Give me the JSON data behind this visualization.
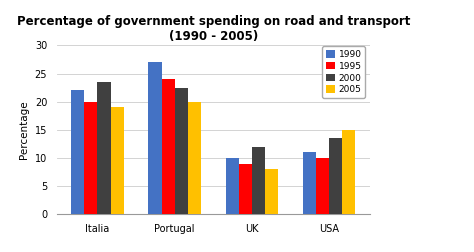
{
  "title": "Percentage of government spending on road and transport\n(1990 - 2005)",
  "ylabel": "Percentage",
  "categories": [
    "Italia",
    "Portugal",
    "UK",
    "USA"
  ],
  "years": [
    "1990",
    "1995",
    "2000",
    "2005"
  ],
  "values": {
    "1990": [
      22,
      27,
      10,
      11
    ],
    "1995": [
      20,
      24,
      9,
      10
    ],
    "2000": [
      23.5,
      22.5,
      12,
      13.5
    ],
    "2005": [
      19,
      20,
      8,
      15
    ]
  },
  "colors": {
    "1990": "#4472C4",
    "1995": "#FF0000",
    "2000": "#404040",
    "2005": "#FFC000"
  },
  "ylim": [
    0,
    30
  ],
  "yticks": [
    0,
    5,
    10,
    15,
    20,
    25,
    30
  ],
  "bar_width": 0.17,
  "legend_fontsize": 6.5,
  "title_fontsize": 8.5,
  "tick_fontsize": 7,
  "ylabel_fontsize": 7.5,
  "background_color": "#ffffff"
}
